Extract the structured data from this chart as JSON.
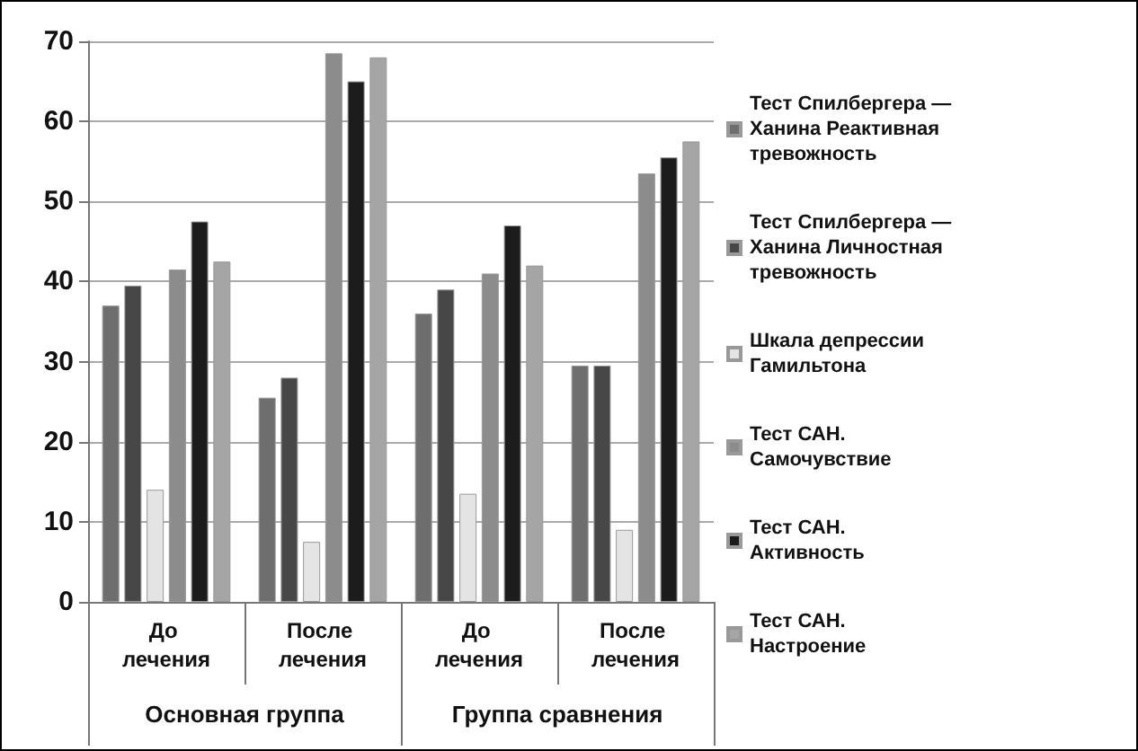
{
  "chart_data": {
    "type": "bar",
    "categories": [
      "До лечения",
      "После лечения",
      "До лечения",
      "После лечения"
    ],
    "annotations": [
      "Основная группа",
      "Группа сравнения"
    ],
    "series": [
      {
        "name": "Тест Спилбергера — Ханина Реактивная тревожность",
        "color": "#6e6e6e",
        "values": [
          37,
          25.5,
          36,
          29.5
        ]
      },
      {
        "name": "Тест Спилбергера — Ханина Личностная тревожность",
        "color": "#474747",
        "values": [
          39.5,
          28,
          39,
          29.5
        ]
      },
      {
        "name": "Шкала депрессии Гамильтона",
        "color": "#e4e4e4",
        "values": [
          14,
          7.5,
          13.5,
          9
        ]
      },
      {
        "name": "Тест САН. Самочувствие",
        "color": "#8c8c8c",
        "values": [
          41.5,
          68.5,
          41,
          53.5
        ]
      },
      {
        "name": "Тест САН. Активность",
        "color": "#1c1c1c",
        "values": [
          47.5,
          65,
          47,
          55.5
        ]
      },
      {
        "name": "Тест САН. Настроение",
        "color": "#a5a5a5",
        "values": [
          42.5,
          68,
          42,
          57.5
        ]
      }
    ],
    "ylim": [
      0,
      70
    ],
    "yticks": [
      0,
      10,
      20,
      30,
      40,
      50,
      60,
      70
    ],
    "grid": "y",
    "legend": "right"
  }
}
